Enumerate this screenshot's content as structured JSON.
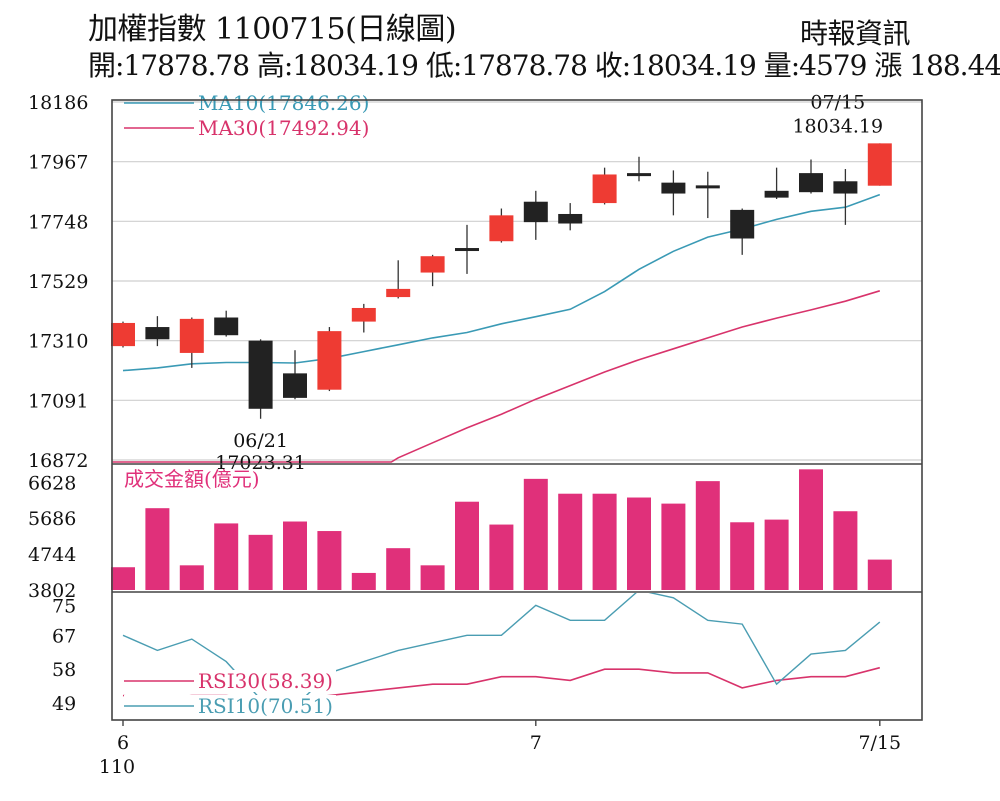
{
  "header": {
    "title": "加權指數 1100715(日線圖)",
    "source": "時報資訊",
    "stats": "開:17878.78 高:18034.19 低:17878.78 收:18034.19 量:4579 漲 188.44"
  },
  "colors": {
    "up": "#ee3b33",
    "down": "#222222",
    "ma10": "#3a9ab5",
    "ma30": "#d8336b",
    "volume": "#e0307a",
    "rsi10": "#4a9db2",
    "rsi30": "#d8336b"
  },
  "chart_data": [
    {
      "type": "candlestick",
      "yticks": [
        16872,
        17091,
        17310,
        17529,
        17748,
        17967,
        18186
      ],
      "ylim": [
        16872,
        18186
      ],
      "grid": true,
      "x_tick_labels": [
        {
          "index": 0,
          "label": "6"
        },
        {
          "index": 12,
          "label": "7"
        },
        {
          "index": 22,
          "label": "7/15"
        }
      ],
      "x_sub_label": "110",
      "legend": [
        "MA10(17846.26)",
        "MA30(17492.94)"
      ],
      "annotations": [
        {
          "index": 4,
          "line1": "06/21",
          "line2": "17023.31",
          "position": "below"
        },
        {
          "index": 22,
          "line1": "07/15",
          "line2": "18034.19",
          "position": "above"
        }
      ],
      "candles": [
        {
          "o": 17290,
          "c": 17375,
          "h": 17380,
          "l": 17285
        },
        {
          "o": 17360,
          "c": 17315,
          "h": 17400,
          "l": 17290
        },
        {
          "o": 17265,
          "c": 17390,
          "h": 17395,
          "l": 17210
        },
        {
          "o": 17395,
          "c": 17330,
          "h": 17420,
          "l": 17325
        },
        {
          "o": 17310,
          "c": 17060,
          "h": 17315,
          "l": 17023.31
        },
        {
          "o": 17190,
          "c": 17100,
          "h": 17275,
          "l": 17095
        },
        {
          "o": 17130,
          "c": 17345,
          "h": 17360,
          "l": 17125
        },
        {
          "o": 17380,
          "c": 17430,
          "h": 17445,
          "l": 17340
        },
        {
          "o": 17470,
          "c": 17500,
          "h": 17605,
          "l": 17465
        },
        {
          "o": 17560,
          "c": 17620,
          "h": 17625,
          "l": 17510
        },
        {
          "o": 17650,
          "c": 17640,
          "h": 17735,
          "l": 17555
        },
        {
          "o": 17675,
          "c": 17770,
          "h": 17795,
          "l": 17670
        },
        {
          "o": 17820,
          "c": 17745,
          "h": 17860,
          "l": 17680
        },
        {
          "o": 17775,
          "c": 17740,
          "h": 17815,
          "l": 17715
        },
        {
          "o": 17815,
          "c": 17920,
          "h": 17945,
          "l": 17810
        },
        {
          "o": 17925,
          "c": 17915,
          "h": 17985,
          "l": 17895
        },
        {
          "o": 17890,
          "c": 17850,
          "h": 17935,
          "l": 17770
        },
        {
          "o": 17880,
          "c": 17875,
          "h": 17930,
          "l": 17760
        },
        {
          "o": 17790,
          "c": 17685,
          "h": 17795,
          "l": 17625
        },
        {
          "o": 17860,
          "c": 17835,
          "h": 17945,
          "l": 17830
        },
        {
          "o": 17925,
          "c": 17855,
          "h": 17975,
          "l": 17850
        },
        {
          "o": 17895,
          "c": 17850,
          "h": 17940,
          "l": 17735
        },
        {
          "o": 17878.78,
          "c": 18034.19,
          "h": 18034.19,
          "l": 17878.78
        }
      ],
      "ma10": [
        17200,
        17210,
        17225,
        17230,
        17230,
        17228,
        17245,
        17270,
        17295,
        17320,
        17340,
        17372,
        17398,
        17425,
        17490,
        17572,
        17638,
        17690,
        17720,
        17755,
        17785,
        17800,
        17846.26
      ],
      "ma30": [
        null,
        null,
        null,
        null,
        null,
        null,
        null,
        null,
        16880,
        16935,
        16990,
        17040,
        17095,
        17145,
        17195,
        17240,
        17280,
        17320,
        17360,
        17393,
        17423,
        17455,
        17492.94
      ]
    },
    {
      "type": "bar",
      "title": "成交金額(億元)",
      "yticks": [
        3802,
        4744,
        5686,
        6628
      ],
      "ylim": [
        3802,
        6900
      ],
      "values": [
        4400,
        5950,
        4450,
        5550,
        5250,
        5600,
        5350,
        4250,
        4900,
        4450,
        6120,
        5520,
        6720,
        6330,
        6330,
        6230,
        6070,
        6660,
        5580,
        5650,
        6970,
        5870,
        4600
      ]
    },
    {
      "type": "line",
      "yticks": [
        49,
        58,
        67,
        75
      ],
      "ylim": [
        45,
        78
      ],
      "legend": [
        "RSI30(58.39)",
        "RSI10(70.51)"
      ],
      "series": [
        {
          "name": "RSI10(70.51)",
          "values": [
            67,
            63,
            66,
            60,
            50,
            48,
            57,
            60,
            63,
            65,
            67,
            67,
            75,
            71,
            71,
            79,
            77,
            71,
            70,
            54,
            62,
            63,
            70.51
          ]
        },
        {
          "name": "RSI30(58.39)",
          "values": [
            51,
            50,
            51,
            51,
            50,
            50,
            51,
            52,
            53,
            54,
            54,
            56,
            56,
            55,
            58,
            58,
            57,
            57,
            53,
            55,
            56,
            56,
            58.39
          ]
        }
      ]
    }
  ]
}
